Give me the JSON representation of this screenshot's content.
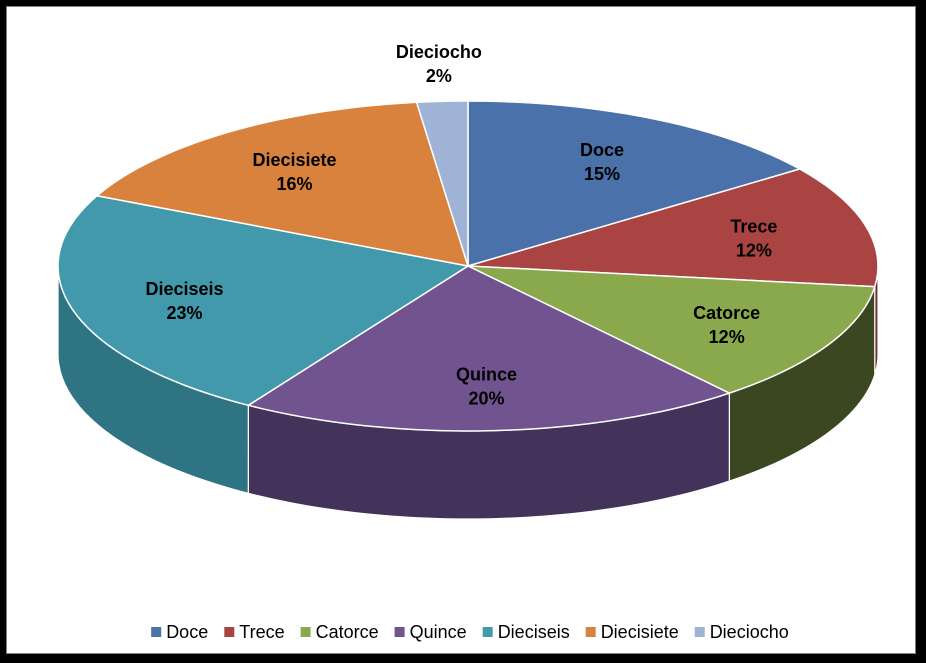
{
  "chart_data": {
    "type": "pie",
    "three_d": true,
    "legend_position": "bottom",
    "slices": [
      {
        "name": "Doce",
        "value": 15,
        "label": "15%",
        "color": "#4a71a9",
        "side_color": "#2e4a70"
      },
      {
        "name": "Trece",
        "value": 12,
        "label": "12%",
        "color": "#a94442",
        "side_color": "#6f2b2a"
      },
      {
        "name": "Catorce",
        "value": 12,
        "label": "12%",
        "color": "#8aa84c",
        "side_color": "#3a4720"
      },
      {
        "name": "Quince",
        "value": 20,
        "label": "20%",
        "color": "#71548f",
        "side_color": "#43325a"
      },
      {
        "name": "Dieciseis",
        "value": 23,
        "label": "23%",
        "color": "#4299ab",
        "side_color": "#2e7483"
      },
      {
        "name": "Diecisiete",
        "value": 16,
        "label": "16%",
        "color": "#d9823e",
        "side_color": "#9a5b2b"
      },
      {
        "name": "Dieciocho",
        "value": 2,
        "label": "2%",
        "color": "#9fb3d6",
        "side_color": "#6d7fa0"
      }
    ]
  }
}
